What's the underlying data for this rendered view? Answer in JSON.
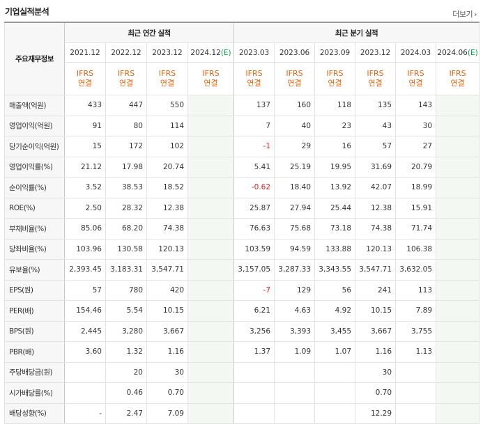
{
  "header": {
    "title": "기업실적분석",
    "more_label": "더보기",
    "more_arrow": "›"
  },
  "table": {
    "corner_label": "주요재무정보",
    "annual_group_label": "최근 연간 실적",
    "quarter_group_label": "최근 분기 실적",
    "annual_periods": [
      "2021.12",
      "2022.12",
      "2023.12",
      "2024.12"
    ],
    "annual_estimate_marker": "(E)",
    "quarter_periods": [
      "2023.03",
      "2023.06",
      "2023.09",
      "2023.12",
      "2024.03",
      "2024.06"
    ],
    "quarter_estimate_marker": "(E)",
    "standard_line1": "IFRS",
    "standard_line2": "연결",
    "rows": [
      {
        "label": "매출액(억원)",
        "annual": [
          "433",
          "447",
          "550",
          ""
        ],
        "quarter": [
          "137",
          "160",
          "118",
          "135",
          "143",
          ""
        ]
      },
      {
        "label": "영업이익(억원)",
        "annual": [
          "91",
          "80",
          "114",
          ""
        ],
        "quarter": [
          "7",
          "40",
          "23",
          "43",
          "30",
          ""
        ]
      },
      {
        "label": "당기순이익(억원)",
        "annual": [
          "15",
          "172",
          "102",
          ""
        ],
        "quarter": [
          "-1",
          "29",
          "16",
          "57",
          "27",
          ""
        ]
      },
      {
        "label": "영업이익률(%)",
        "annual": [
          "21.12",
          "17.98",
          "20.74",
          ""
        ],
        "quarter": [
          "5.41",
          "25.19",
          "19.95",
          "31.69",
          "20.79",
          ""
        ]
      },
      {
        "label": "순이익률(%)",
        "annual": [
          "3.52",
          "38.53",
          "18.52",
          ""
        ],
        "quarter": [
          "-0.62",
          "18.40",
          "13.92",
          "42.07",
          "18.99",
          ""
        ]
      },
      {
        "label": "ROE(%)",
        "annual": [
          "2.50",
          "28.32",
          "12.38",
          ""
        ],
        "quarter": [
          "25.87",
          "27.94",
          "25.44",
          "12.38",
          "15.91",
          ""
        ]
      },
      {
        "label": "부채비율(%)",
        "annual": [
          "85.06",
          "68.20",
          "74.38",
          ""
        ],
        "quarter": [
          "76.63",
          "75.68",
          "73.18",
          "74.38",
          "71.74",
          ""
        ]
      },
      {
        "label": "당좌비율(%)",
        "annual": [
          "103.96",
          "130.58",
          "120.13",
          ""
        ],
        "quarter": [
          "103.59",
          "94.59",
          "133.88",
          "120.13",
          "106.38",
          ""
        ]
      },
      {
        "label": "유보율(%)",
        "annual": [
          "2,393.45",
          "3,183.31",
          "3,547.71",
          ""
        ],
        "quarter": [
          "3,157.05",
          "3,287.33",
          "3,343.55",
          "3,547.71",
          "3,632.05",
          ""
        ]
      },
      {
        "label": "EPS(원)",
        "annual": [
          "57",
          "780",
          "420",
          ""
        ],
        "quarter": [
          "-7",
          "129",
          "56",
          "241",
          "113",
          ""
        ]
      },
      {
        "label": "PER(배)",
        "annual": [
          "154.46",
          "5.54",
          "10.15",
          ""
        ],
        "quarter": [
          "6.21",
          "4.63",
          "4.92",
          "10.15",
          "7.89",
          ""
        ]
      },
      {
        "label": "BPS(원)",
        "annual": [
          "2,445",
          "3,280",
          "3,667",
          ""
        ],
        "quarter": [
          "3,256",
          "3,393",
          "3,455",
          "3,667",
          "3,755",
          ""
        ]
      },
      {
        "label": "PBR(배)",
        "annual": [
          "3.60",
          "1.32",
          "1.16",
          ""
        ],
        "quarter": [
          "1.37",
          "1.09",
          "1.07",
          "1.16",
          "1.13",
          ""
        ]
      },
      {
        "label": "주당배당금(원)",
        "annual": [
          "",
          "20",
          "30",
          ""
        ],
        "quarter": [
          "",
          "",
          "",
          "30",
          "",
          ""
        ]
      },
      {
        "label": "시가배당률(%)",
        "annual": [
          "",
          "0.46",
          "0.70",
          ""
        ],
        "quarter": [
          "",
          "",
          "",
          "0.70",
          "",
          ""
        ]
      },
      {
        "label": "배당성향(%)",
        "annual": [
          "-",
          "2.47",
          "7.09",
          ""
        ],
        "quarter": [
          "",
          "",
          "",
          "12.29",
          "",
          ""
        ]
      }
    ],
    "colors": {
      "ifrs": "#e8640c",
      "estimate_bg": "#f3f8f2",
      "estimate_marker": "#00a843",
      "negative": "#e31b1b",
      "header_bg": "#f7f7f7"
    }
  }
}
